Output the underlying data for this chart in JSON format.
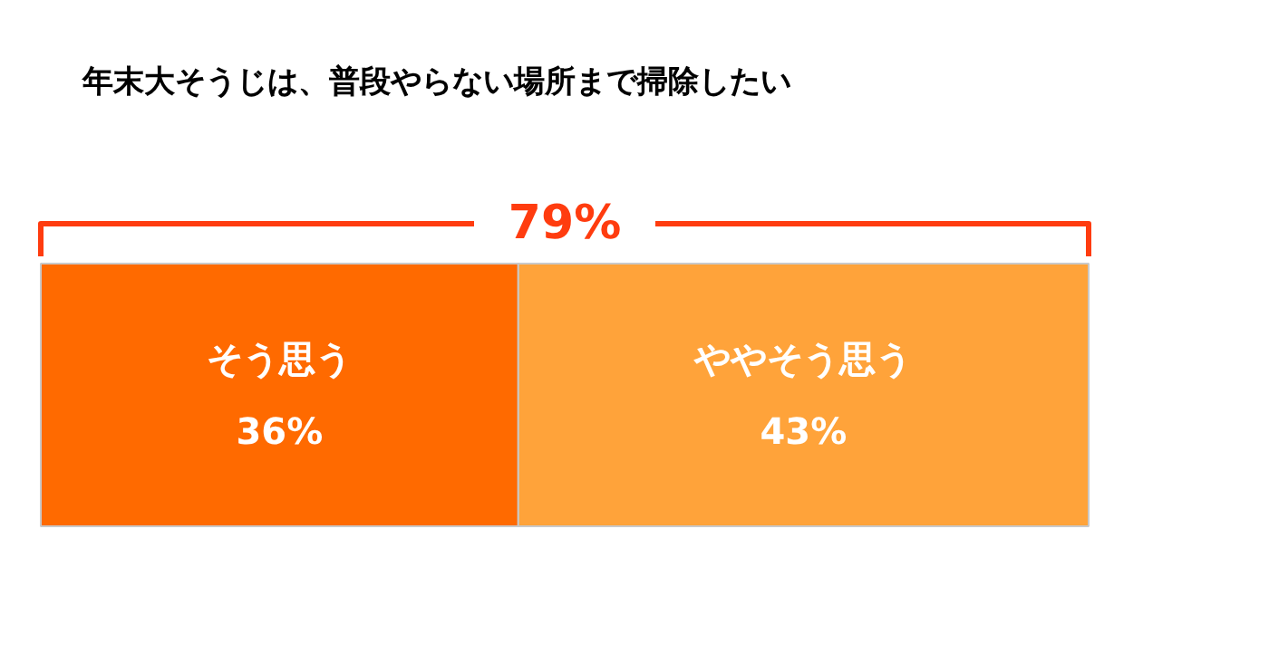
{
  "chart_data": {
    "type": "bar",
    "orientation": "horizontal",
    "stacked": true,
    "title": "年末大そうじは、普段やらない場所まで掃除したい",
    "categories": [
      null
    ],
    "series": [
      {
        "name": "そう思う",
        "color": "#ff6a00",
        "values": [
          36
        ],
        "value_labels": [
          "36%"
        ]
      },
      {
        "name": "ややそう思う",
        "color": "#ffa33a",
        "values": [
          43
        ],
        "value_labels": [
          "43%"
        ]
      }
    ],
    "totals": [
      "79%"
    ],
    "legend": false
  }
}
